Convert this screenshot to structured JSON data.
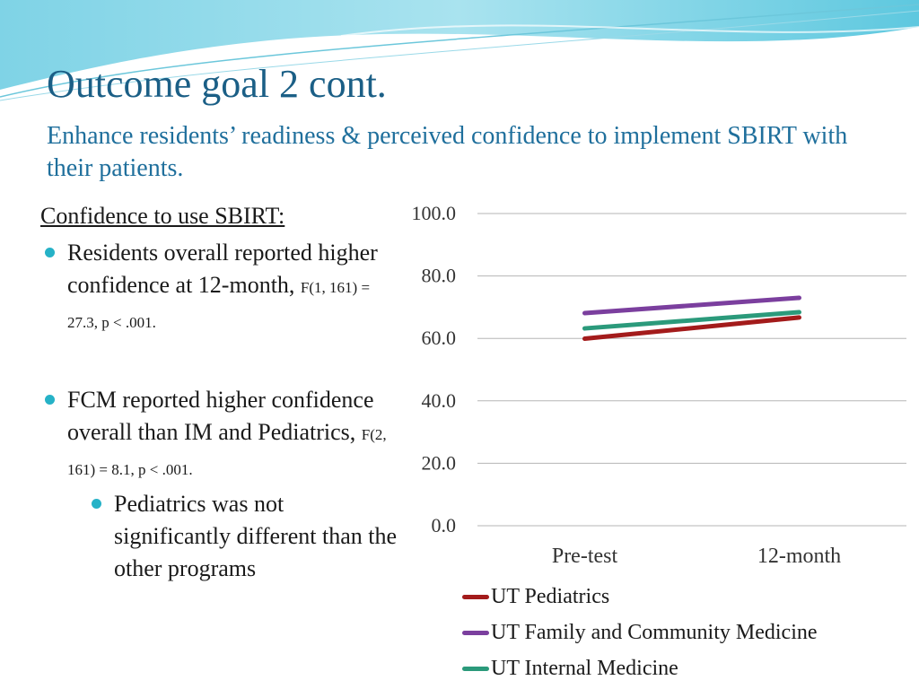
{
  "slide": {
    "title": "Outcome goal 2 cont.",
    "subtitle": "Enhance residents’ readiness & perceived confidence to implement SBIRT with their patients."
  },
  "left_panel": {
    "heading": "Confidence to use SBIRT:",
    "bullet1_text": "Residents overall reported higher confidence at 12-month, ",
    "bullet1_stat": "F(1, 161) = 27.3, p < .001.",
    "bullet2_text": "FCM reported higher confidence overall than IM and Pediatrics, ",
    "bullet2_stat": "F(2, 161) = 8.1, p < .001.",
    "sub_bullet": "Pediatrics was not significantly different than the other programs"
  },
  "chart_data": {
    "type": "line",
    "categories": [
      "Pre-test",
      "12-month"
    ],
    "series": [
      {
        "name": "UT Pediatrics",
        "values": [
          59.9,
          66.7
        ],
        "color": "#a31b1b"
      },
      {
        "name": "UT Family and Community Medicine",
        "values": [
          68.1,
          73.0
        ],
        "color": "#7b3f9e"
      },
      {
        "name": "UT Internal Medicine",
        "values": [
          63.2,
          68.4
        ],
        "color": "#2b9a7b"
      }
    ],
    "ylim": [
      0,
      100
    ],
    "yticks": [
      "0.0",
      "20.0",
      "40.0",
      "60.0",
      "80.0",
      "100.0"
    ],
    "grid": true,
    "legend": "bottom"
  }
}
